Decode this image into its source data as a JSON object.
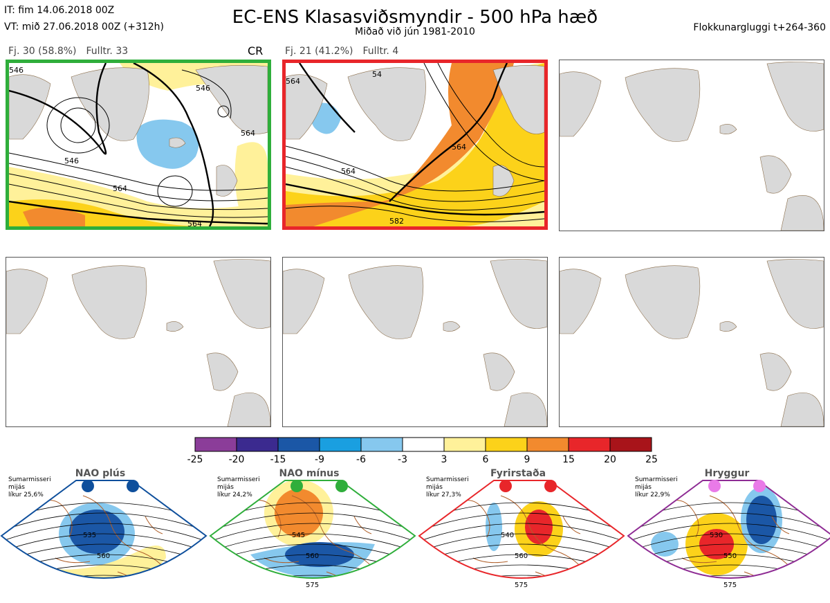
{
  "header": {
    "init_time": "IT: fim 14.06.2018 00Z",
    "valid_time": "VT: mið 27.06.2018 00Z  (+312h)",
    "title": "EC-ENS Klasasviðsmyndir - 500 hPa hæð",
    "subtitle": "Miðað við jún 1981-2010",
    "window": "Flokkunargluggi t+264-360"
  },
  "panels": [
    {
      "fj": "Fj. 30 (58.8%)",
      "fulltr": "Fulltr. 33",
      "tag": "CR",
      "border": "#2fae3b",
      "contour_labels": [
        "546",
        "546",
        "564",
        "546",
        "564",
        "564"
      ]
    },
    {
      "fj": "Fj. 21 (41.2%)",
      "fulltr": "Fulltr. 4",
      "tag": "",
      "border": "#e8262a",
      "contour_labels": [
        "564",
        "564",
        "564",
        "582",
        "54"
      ]
    },
    {
      "fj": "",
      "fulltr": "",
      "tag": "",
      "border": ""
    },
    {
      "fj": "",
      "fulltr": "",
      "tag": "",
      "border": ""
    },
    {
      "fj": "",
      "fulltr": "",
      "tag": "",
      "border": ""
    },
    {
      "fj": "",
      "fulltr": "",
      "tag": "",
      "border": ""
    }
  ],
  "colorbar": {
    "colors": [
      "#8b3d99",
      "#3b2a8f",
      "#1b57a6",
      "#1a9fe0",
      "#86c8ee",
      "#ffffff",
      "#fff19a",
      "#fcd21a",
      "#f28a2e",
      "#e8262a",
      "#a8141a"
    ],
    "labels": [
      "-25",
      "-20",
      "-15",
      "-9",
      "-6",
      "-3",
      "3",
      "6",
      "9",
      "15",
      "20",
      "25"
    ]
  },
  "regimes": [
    {
      "name": "NAO plús",
      "note": [
        "Sumarmisseri",
        "mijás",
        "líkur 25,6%"
      ],
      "color": "#0e4f9c",
      "dot_color": "#0e4f9c",
      "contours": [
        "535",
        "560"
      ]
    },
    {
      "name": "NAO mínus",
      "note": [
        "Sumarmisseri",
        "mijás",
        "líkur 24,2%"
      ],
      "color": "#2fae3b",
      "dot_color": "#2fae3b",
      "contours": [
        "545",
        "560",
        "575"
      ]
    },
    {
      "name": "Fyrirstaða",
      "note": [
        "Sumarmisseri",
        "mijás",
        "líkur 27,3%"
      ],
      "color": "#e8262a",
      "dot_color": "#e8262a",
      "contours": [
        "540",
        "560",
        "575"
      ]
    },
    {
      "name": "Hryggur",
      "note": [
        "Sumarmisseri",
        "mijás",
        "líkur 22,9%"
      ],
      "color": "#8e2c94",
      "dot_color": "#e97ae8",
      "contours": [
        "530",
        "550",
        "575"
      ]
    }
  ]
}
